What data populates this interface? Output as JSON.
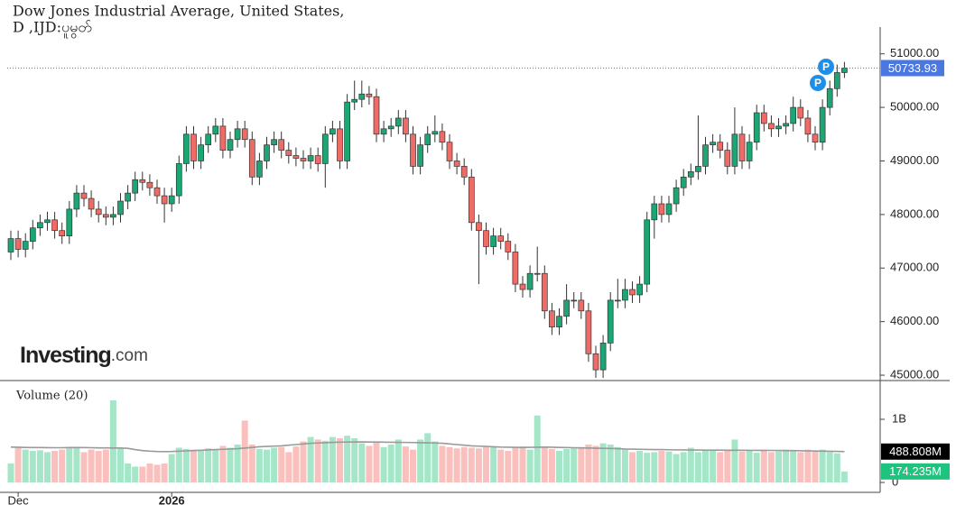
{
  "chart_data": {
    "type": "candlestick",
    "title": "Dow Jones Industrial Average, United States,",
    "subtitle": "D ,IJD:ပူမွတ်",
    "logo": {
      "name": "Investing",
      "suffix": ".com"
    },
    "volume_title": "Volume (20)",
    "colors": {
      "up": "#1ba674",
      "down": "#ef6b66",
      "up_volume": "#a6e6c8",
      "down_volume": "#f9c0bd",
      "volume_ma": "#9a9a9a",
      "last_price": "#4a78e0"
    },
    "categories": [
      null,
      "Dec",
      null,
      null,
      null,
      null,
      null,
      null,
      null,
      null,
      null,
      null,
      null,
      null,
      null,
      null,
      null,
      null,
      null,
      null,
      null,
      null,
      "2026",
      null,
      null,
      null,
      null,
      null,
      null,
      null,
      null,
      null,
      null,
      null,
      null,
      null,
      null,
      null,
      null,
      null,
      null,
      null,
      null,
      null,
      null,
      null,
      null,
      null,
      null,
      null,
      null,
      null,
      null,
      null,
      null,
      null,
      null,
      null,
      null,
      null,
      null,
      null,
      null,
      null,
      null,
      null,
      null,
      null,
      null,
      null,
      null,
      null,
      null,
      null,
      null,
      null,
      null,
      null,
      null,
      null,
      null,
      null,
      null,
      null,
      null,
      null,
      null,
      null,
      null,
      null,
      null,
      null,
      null,
      null,
      null,
      null,
      null,
      null,
      null,
      null,
      null,
      null,
      null,
      null,
      null,
      null,
      null,
      null,
      null,
      null,
      null,
      null,
      null,
      null,
      null
    ],
    "open": [
      47300,
      47550,
      47350,
      47500,
      47750,
      47850,
      47900,
      47700,
      47600,
      48100,
      48400,
      48300,
      48100,
      48000,
      47950,
      48000,
      48250,
      48400,
      48650,
      48600,
      48500,
      48350,
      48200,
      48350,
      48950,
      49500,
      49000,
      49300,
      49500,
      49650,
      49200,
      49400,
      49600,
      49400,
      48700,
      49000,
      49300,
      49400,
      49200,
      49100,
      49050,
      49000,
      49100,
      48950,
      49500,
      49600,
      49000,
      50100,
      50150,
      50250,
      50200,
      49500,
      49600,
      49650,
      49800,
      49500,
      48900,
      49300,
      49500,
      49550,
      49350,
      49000,
      48900,
      48700,
      47850,
      47700,
      47400,
      47600,
      47500,
      47300,
      46700,
      46600,
      46900,
      46900,
      46200,
      45900,
      46100,
      46400,
      46400,
      46200,
      45400,
      45100,
      45600,
      46400,
      46400,
      46600,
      46500,
      46700,
      47900,
      48200,
      48000,
      48200,
      48500,
      48700,
      48800,
      48900,
      49300,
      49350,
      49200,
      48900,
      49500,
      49000,
      49350,
      49900,
      49700,
      49600,
      49650,
      49700,
      50000,
      49800,
      49500,
      49350,
      50000,
      50350,
      50650
    ],
    "high": [
      47700,
      47700,
      47650,
      47900,
      48000,
      48050,
      48050,
      47850,
      48250,
      48550,
      48550,
      48450,
      48250,
      48150,
      48150,
      48400,
      48550,
      48800,
      48800,
      48750,
      48650,
      48500,
      48500,
      49100,
      49650,
      49650,
      49450,
      49650,
      49800,
      49800,
      49550,
      49750,
      49750,
      49550,
      49150,
      49450,
      49550,
      49550,
      49350,
      49250,
      49200,
      49250,
      49250,
      49650,
      49750,
      49750,
      50250,
      50500,
      50500,
      50400,
      50350,
      49750,
      49800,
      49950,
      49950,
      49650,
      49450,
      49650,
      49850,
      49700,
      49500,
      49150,
      49050,
      48850,
      48000,
      47850,
      47750,
      47750,
      47650,
      47450,
      46850,
      47050,
      47400,
      47050,
      46350,
      46250,
      46700,
      46550,
      46550,
      46350,
      45550,
      45750,
      46550,
      46800,
      46800,
      46750,
      46850,
      48050,
      48350,
      48350,
      48350,
      48650,
      48850,
      48950,
      49850,
      49450,
      49500,
      49500,
      49350,
      50000,
      49650,
      49500,
      50050,
      50050,
      49850,
      49800,
      49850,
      50200,
      50150,
      49950,
      49650,
      50150,
      50500,
      50800,
      50850
    ],
    "low": [
      47150,
      47200,
      47200,
      47350,
      47600,
      47700,
      47550,
      47450,
      47450,
      47950,
      48150,
      47950,
      47850,
      47800,
      47800,
      47850,
      48100,
      48250,
      48450,
      48350,
      48200,
      47850,
      48050,
      48200,
      48800,
      48850,
      48850,
      49150,
      49350,
      49050,
      49050,
      49250,
      49250,
      48550,
      48550,
      48850,
      49150,
      49050,
      48950,
      48900,
      48850,
      48850,
      48800,
      48500,
      49350,
      48850,
      48850,
      49950,
      50000,
      50050,
      49350,
      49350,
      49450,
      49500,
      49350,
      48750,
      48750,
      49150,
      49350,
      49200,
      48850,
      48750,
      48550,
      47700,
      46700,
      47250,
      47250,
      47350,
      47150,
      46550,
      46450,
      46450,
      46750,
      46050,
      45750,
      45750,
      45950,
      46250,
      46050,
      45250,
      44950,
      44950,
      45450,
      46250,
      46250,
      46350,
      46350,
      46550,
      47550,
      47850,
      47850,
      48050,
      48350,
      48550,
      48650,
      48750,
      49150,
      49050,
      48750,
      48750,
      48850,
      48850,
      49200,
      49550,
      49450,
      49450,
      49500,
      49550,
      49650,
      49350,
      49200,
      49200,
      49850,
      50200,
      50550
    ],
    "close": [
      47550,
      47350,
      47500,
      47750,
      47850,
      47900,
      47700,
      47600,
      48100,
      48400,
      48300,
      48100,
      48000,
      47950,
      48000,
      48250,
      48400,
      48650,
      48600,
      48500,
      48350,
      48200,
      48350,
      48950,
      49500,
      49000,
      49300,
      49500,
      49650,
      49200,
      49400,
      49600,
      49400,
      48700,
      49000,
      49300,
      49400,
      49200,
      49100,
      49050,
      49000,
      49100,
      48950,
      49500,
      49600,
      49000,
      50100,
      50150,
      50250,
      50200,
      49500,
      49600,
      49650,
      49800,
      49500,
      48900,
      49300,
      49500,
      49550,
      49350,
      49000,
      48900,
      48700,
      47850,
      47700,
      47400,
      47600,
      47500,
      47300,
      46700,
      46600,
      46900,
      46900,
      46200,
      45900,
      46100,
      46400,
      46400,
      46200,
      45400,
      45100,
      45600,
      46400,
      46400,
      46600,
      46500,
      46700,
      47900,
      48200,
      48000,
      48200,
      48500,
      48700,
      48800,
      48900,
      49300,
      49350,
      49200,
      48900,
      49500,
      49000,
      49350,
      49900,
      49700,
      49600,
      49650,
      49700,
      50000,
      49800,
      49500,
      49350,
      50000,
      50350,
      50650,
      50733.93
    ],
    "volume": [
      300,
      550,
      520,
      500,
      510,
      480,
      500,
      520,
      560,
      550,
      480,
      520,
      500,
      520,
      1300,
      540,
      300,
      250,
      250,
      300,
      280,
      300,
      450,
      550,
      530,
      520,
      500,
      540,
      530,
      580,
      550,
      600,
      980,
      600,
      530,
      520,
      550,
      560,
      480,
      570,
      650,
      720,
      680,
      660,
      720,
      700,
      740,
      700,
      620,
      580,
      630,
      560,
      600,
      680,
      570,
      520,
      680,
      780,
      650,
      580,
      560,
      540,
      560,
      550,
      540,
      560,
      560,
      520,
      500,
      560,
      570,
      520,
      1060,
      560,
      530,
      500,
      530,
      540,
      560,
      600,
      580,
      620,
      600,
      560,
      520,
      480,
      500,
      470,
      480,
      500,
      490,
      450,
      480,
      550,
      480,
      510,
      520,
      480,
      520,
      680,
      490,
      500,
      470,
      520,
      480,
      490,
      520,
      500,
      480,
      520,
      500,
      520,
      480,
      460,
      174.235
    ],
    "volume_ma": [
      560,
      558,
      555,
      553,
      552,
      551,
      550,
      550,
      552,
      553,
      552,
      550,
      548,
      547,
      545,
      545,
      540,
      520,
      505,
      495,
      490,
      488,
      490,
      495,
      500,
      505,
      510,
      515,
      520,
      525,
      530,
      535,
      545,
      555,
      565,
      570,
      575,
      580,
      590,
      600,
      610,
      620,
      625,
      630,
      635,
      638,
      640,
      640,
      642,
      640,
      640,
      638,
      636,
      635,
      634,
      632,
      630,
      628,
      625,
      620,
      610,
      600,
      590,
      580,
      575,
      570,
      565,
      560,
      558,
      556,
      555,
      556,
      558,
      560,
      558,
      555,
      552,
      550,
      548,
      545,
      542,
      540,
      538,
      535,
      530,
      528,
      525,
      522,
      520,
      520,
      518,
      516,
      515,
      514,
      513,
      512,
      512,
      511,
      510,
      510,
      510,
      509,
      508,
      508,
      507,
      506,
      505,
      504,
      502,
      500,
      498,
      496,
      494,
      492,
      488.808
    ],
    "volume_tags": [
      {
        "value": 488.808,
        "label": "488.808M"
      },
      {
        "value": 174.235,
        "label": "174.235M"
      }
    ],
    "ylim": [
      44900,
      51500
    ],
    "yticks": [
      {
        "value": 45000,
        "label": "45000.00"
      },
      {
        "value": 46000,
        "label": "46000.00"
      },
      {
        "value": 47000,
        "label": "47000.00"
      },
      {
        "value": 48000,
        "label": "48000.00"
      },
      {
        "value": 49000,
        "label": "49000.00"
      },
      {
        "value": 50000,
        "label": "50000.00"
      },
      {
        "value": 51000,
        "label": "51000.00"
      }
    ],
    "y2lim": [
      0,
      1500
    ],
    "y2ticks": [
      0,
      {
        "value": 1000,
        "label": "1B"
      }
    ]
  }
}
